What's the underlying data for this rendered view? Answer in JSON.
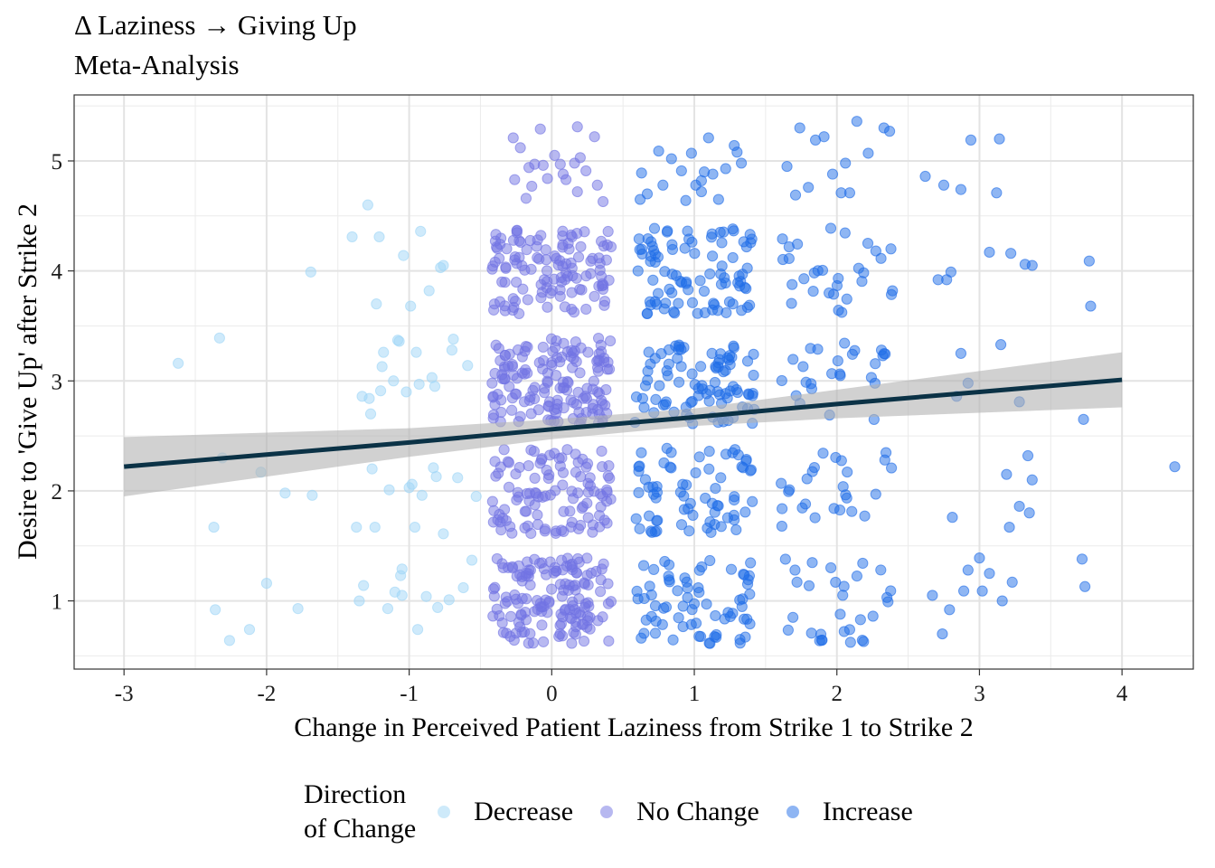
{
  "chart_data": {
    "type": "scatter",
    "title": "Δ Laziness → Giving Up",
    "subtitle": "Meta-Analysis",
    "xlabel": "Change in Perceived Patient Laziness from Strike 1 to Strike 2",
    "ylabel": "Desire to 'Give Up' after Strike 2",
    "xlim": [
      -3.35,
      4.5
    ],
    "ylim": [
      0.38,
      5.6
    ],
    "x_ticks": [
      "-3",
      "-2",
      "-1",
      "0",
      "1",
      "2",
      "3",
      "4"
    ],
    "y_ticks": [
      "1",
      "2",
      "3",
      "4",
      "5"
    ],
    "grid": true,
    "legend": {
      "title": "Direction\nof Change",
      "position": "bottom",
      "entries": [
        "Decrease",
        "No Change",
        "Increase"
      ]
    },
    "series": [
      {
        "name": "Decrease",
        "color": "#9fd6f7",
        "points": [
          [
            -2.62,
            3.16
          ],
          [
            -2.33,
            3.39
          ],
          [
            -2.31,
            2.3
          ],
          [
            -2.37,
            1.67
          ],
          [
            -2.36,
            0.92
          ],
          [
            -2.26,
            0.64
          ],
          [
            -2.12,
            0.74
          ],
          [
            -2.04,
            2.17
          ],
          [
            -2.0,
            1.16
          ],
          [
            -1.87,
            1.98
          ],
          [
            -1.78,
            0.93
          ],
          [
            -1.69,
            3.99
          ],
          [
            -1.68,
            1.96
          ],
          [
            -1.4,
            4.31
          ],
          [
            -1.37,
            1.67
          ],
          [
            -1.35,
            1.0
          ],
          [
            -1.33,
            2.86
          ],
          [
            -1.32,
            1.14
          ],
          [
            -1.29,
            4.6
          ],
          [
            -1.28,
            2.84
          ],
          [
            -1.27,
            2.7
          ],
          [
            -1.26,
            2.2
          ],
          [
            -1.24,
            1.67
          ],
          [
            -1.23,
            3.7
          ],
          [
            -1.21,
            4.31
          ],
          [
            -1.2,
            2.91
          ],
          [
            -1.19,
            3.13
          ],
          [
            -1.18,
            3.26
          ],
          [
            -1.15,
            0.93
          ],
          [
            -1.14,
            2.01
          ],
          [
            -1.11,
            3.0
          ],
          [
            -1.1,
            1.08
          ],
          [
            -1.08,
            3.37
          ],
          [
            -1.07,
            3.36
          ],
          [
            -1.06,
            1.23
          ],
          [
            -1.05,
            1.29
          ],
          [
            -1.05,
            1.05
          ],
          [
            -1.04,
            4.14
          ],
          [
            -1.02,
            2.9
          ],
          [
            -1.0,
            2.03
          ],
          [
            -0.99,
            3.68
          ],
          [
            -0.98,
            2.06
          ],
          [
            -0.96,
            1.67
          ],
          [
            -0.95,
            3.26
          ],
          [
            -0.94,
            0.74
          ],
          [
            -0.93,
            2.97
          ],
          [
            -0.92,
            4.36
          ],
          [
            -0.91,
            1.96
          ],
          [
            -0.88,
            1.04
          ],
          [
            -0.86,
            3.82
          ],
          [
            -0.84,
            3.03
          ],
          [
            -0.83,
            2.21
          ],
          [
            -0.82,
            2.95
          ],
          [
            -0.81,
            2.13
          ],
          [
            -0.8,
            0.94
          ],
          [
            -0.78,
            4.03
          ],
          [
            -0.76,
            4.05
          ],
          [
            -0.76,
            1.61
          ],
          [
            -0.72,
            1.01
          ],
          [
            -0.7,
            3.28
          ],
          [
            -0.69,
            3.38
          ],
          [
            -0.66,
            2.12
          ],
          [
            -0.62,
            1.12
          ],
          [
            -0.59,
            3.14
          ],
          [
            -0.56,
            1.37
          ],
          [
            -0.53,
            1.95
          ]
        ]
      },
      {
        "name": "No Change",
        "color": "#7273e3",
        "points": [
          [
            -0.27,
            5.21
          ],
          [
            -0.22,
            5.12
          ],
          [
            -0.26,
            4.83
          ],
          [
            -0.16,
            4.94
          ],
          [
            -0.14,
            4.77
          ],
          [
            -0.12,
            4.97
          ],
          [
            -0.08,
            5.29
          ],
          [
            -0.03,
            4.84
          ],
          [
            0.02,
            5.05
          ],
          [
            0.06,
            4.97
          ],
          [
            0.1,
            4.83
          ],
          [
            0.16,
            4.98
          ],
          [
            0.18,
            5.31
          ],
          [
            0.2,
            5.03
          ],
          [
            0.24,
            4.91
          ],
          [
            0.32,
            4.78
          ],
          [
            0.36,
            4.63
          ],
          [
            0.18,
            4.72
          ],
          [
            0.3,
            5.22
          ],
          [
            -0.06,
            4.96
          ],
          [
            0.08,
            4.88
          ],
          [
            -0.18,
            4.66
          ]
        ]
      },
      {
        "name": "Increase",
        "color": "#1f6de8",
        "points": [
          [
            0.63,
            4.89
          ],
          [
            0.62,
            4.65
          ],
          [
            0.67,
            4.7
          ],
          [
            0.75,
            5.09
          ],
          [
            0.78,
            4.78
          ],
          [
            0.84,
            5.02
          ],
          [
            0.91,
            4.91
          ],
          [
            0.94,
            4.64
          ],
          [
            0.98,
            5.07
          ],
          [
            1.01,
            4.78
          ],
          [
            1.05,
            4.82
          ],
          [
            1.07,
            4.9
          ],
          [
            1.1,
            5.21
          ],
          [
            1.17,
            4.65
          ],
          [
            1.22,
            4.93
          ],
          [
            1.28,
            5.14
          ],
          [
            1.3,
            5.08
          ],
          [
            1.33,
            4.98
          ],
          [
            1.05,
            4.72
          ],
          [
            1.13,
            4.88
          ],
          [
            1.65,
            4.95
          ],
          [
            1.71,
            4.69
          ],
          [
            1.74,
            5.3
          ],
          [
            1.8,
            4.76
          ],
          [
            1.85,
            5.19
          ],
          [
            1.91,
            5.22
          ],
          [
            1.97,
            4.88
          ],
          [
            2.03,
            4.71
          ],
          [
            2.06,
            4.98
          ],
          [
            2.09,
            4.71
          ],
          [
            2.14,
            5.36
          ],
          [
            2.22,
            5.07
          ],
          [
            2.33,
            5.3
          ],
          [
            2.37,
            5.27
          ],
          [
            2.62,
            4.86
          ],
          [
            2.75,
            4.78
          ],
          [
            2.87,
            4.74
          ],
          [
            2.94,
            5.19
          ],
          [
            3.12,
            4.71
          ],
          [
            3.14,
            5.2
          ],
          [
            2.71,
            3.92
          ],
          [
            2.77,
            3.92
          ],
          [
            2.8,
            3.99
          ],
          [
            3.07,
            4.17
          ],
          [
            3.22,
            4.16
          ],
          [
            3.32,
            4.06
          ],
          [
            3.37,
            4.05
          ],
          [
            3.77,
            4.09
          ],
          [
            3.78,
            3.68
          ],
          [
            2.87,
            3.25
          ],
          [
            2.92,
            2.98
          ],
          [
            3.15,
            3.33
          ],
          [
            3.28,
            2.81
          ],
          [
            2.84,
            2.86
          ],
          [
            3.73,
            2.65
          ],
          [
            2.81,
            1.76
          ],
          [
            3.19,
            2.15
          ],
          [
            3.34,
            2.32
          ],
          [
            3.37,
            2.1
          ],
          [
            3.28,
            1.86
          ],
          [
            3.35,
            1.8
          ],
          [
            3.21,
            1.67
          ],
          [
            4.37,
            2.22
          ],
          [
            2.67,
            1.05
          ],
          [
            2.74,
            0.7
          ],
          [
            2.79,
            0.92
          ],
          [
            2.89,
            1.09
          ],
          [
            2.92,
            1.28
          ],
          [
            3.0,
            1.39
          ],
          [
            3.02,
            1.09
          ],
          [
            3.07,
            1.25
          ],
          [
            3.16,
            1.0
          ],
          [
            3.23,
            1.17
          ],
          [
            3.72,
            1.38
          ],
          [
            3.74,
            1.13
          ]
        ]
      }
    ],
    "band_series": {
      "name": "",
      "x_range": [
        -3,
        4
      ],
      "points": [
        [
          -3,
          2.22
        ],
        [
          -2,
          2.33
        ],
        [
          -1,
          2.44
        ],
        [
          0,
          2.56
        ],
        [
          1,
          2.67
        ],
        [
          2,
          2.79
        ],
        [
          3,
          2.9
        ],
        [
          4,
          3.01
        ]
      ],
      "ci_upper": [
        [
          -3,
          2.49
        ],
        [
          -2,
          2.53
        ],
        [
          -1,
          2.57
        ],
        [
          0,
          2.65
        ],
        [
          1,
          2.75
        ],
        [
          2,
          2.92
        ],
        [
          3,
          3.09
        ],
        [
          4,
          3.26
        ]
      ],
      "ci_lower": [
        [
          -3,
          1.95
        ],
        [
          -2,
          2.13
        ],
        [
          -1,
          2.31
        ],
        [
          0,
          2.47
        ],
        [
          1,
          2.59
        ],
        [
          2,
          2.66
        ],
        [
          3,
          2.71
        ],
        [
          4,
          2.76
        ]
      ],
      "line_color": "#0b3246",
      "band_color": "#b3b3b3"
    }
  }
}
